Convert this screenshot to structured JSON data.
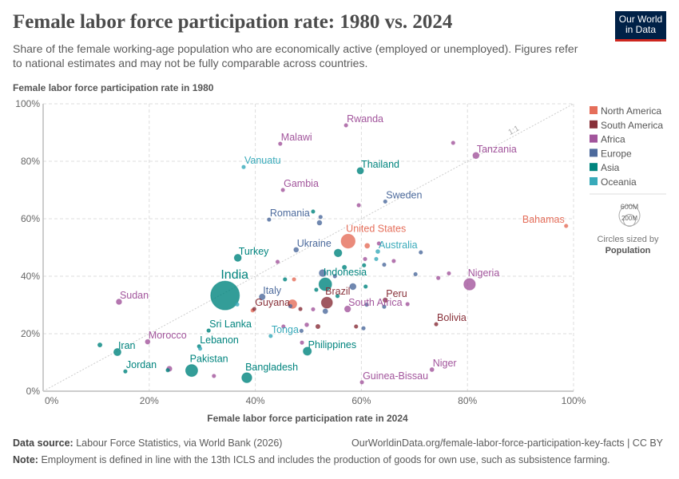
{
  "header": {
    "title": "Female labor force participation rate: 1980 vs. 2024",
    "subtitle": "Share of the female working-age population who are economically active (employed or unemployed). Figures refer to national estimates and may not be fully comparable across countries.",
    "logo": "Our World in Data"
  },
  "footer": {
    "source_label": "Data source:",
    "source": "Labour Force Statistics, via World Bank (2026)",
    "url": "OurWorldinData.org/female-labor-force-participation-key-facts | CC BY",
    "note_label": "Note:",
    "note": "Employment is defined in line with the 13th ICLS and includes the production of goods for own use, such as subsistence farming."
  },
  "chart_data": {
    "type": "scatter",
    "xlabel": "Female labor force participation rate in 2024",
    "ylabel": "Female labor force participation rate in 1980",
    "xlim": [
      0,
      100
    ],
    "ylim": [
      0,
      100
    ],
    "xticks": [
      "0%",
      "20%",
      "40%",
      "60%",
      "80%",
      "100%"
    ],
    "yticks": [
      "0%",
      "20%",
      "40%",
      "60%",
      "80%",
      "100%"
    ],
    "grid": true,
    "reference_line_label": "1:1",
    "legend_position": "right",
    "legend": [
      {
        "name": "North America",
        "color": "#E56E5A"
      },
      {
        "name": "South America",
        "color": "#883039"
      },
      {
        "name": "Africa",
        "color": "#A2559C"
      },
      {
        "name": "Europe",
        "color": "#4C6A9C"
      },
      {
        "name": "Asia",
        "color": "#00847E"
      },
      {
        "name": "Oceania",
        "color": "#38AABA"
      }
    ],
    "size_legend": {
      "title": "Circles sized by",
      "variable": "Population",
      "values": [
        "600M",
        "200M"
      ]
    },
    "points": [
      {
        "name": "India",
        "region": "Asia",
        "x": 34.3,
        "y": 33.3,
        "pop": 1440
      },
      {
        "name": "Rwanda",
        "region": "Africa",
        "x": 57.1,
        "y": 92.5,
        "pop": 14
      },
      {
        "name": "Malawi",
        "region": "Africa",
        "x": 44.7,
        "y": 86.1,
        "pop": 21
      },
      {
        "name": "Vanuatu",
        "region": "Oceania",
        "x": 37.8,
        "y": 78,
        "pop": 0.3
      },
      {
        "name": "Gambia",
        "region": "Africa",
        "x": 45.2,
        "y": 70,
        "pop": 2.7
      },
      {
        "name": "Thailand",
        "region": "Asia",
        "x": 59.8,
        "y": 76.7,
        "pop": 72
      },
      {
        "name": "Tanzania",
        "region": "Africa",
        "x": 81.6,
        "y": 82,
        "pop": 67
      },
      {
        "name": "Sweden",
        "region": "Europe",
        "x": 64.5,
        "y": 66,
        "pop": 10.5
      },
      {
        "name": "Bahamas",
        "region": "North America",
        "x": 98.6,
        "y": 57.5,
        "pop": 0.4
      },
      {
        "name": "Romania",
        "region": "Europe",
        "x": 42.6,
        "y": 59.7,
        "pop": 19
      },
      {
        "name": "Ukraine",
        "region": "Europe",
        "x": 47.7,
        "y": 49.2,
        "pop": 38
      },
      {
        "name": "United States",
        "region": "North America",
        "x": 57.5,
        "y": 52.2,
        "pop": 340
      },
      {
        "name": "Turkey",
        "region": "Asia",
        "x": 36.7,
        "y": 46.4,
        "pop": 86
      },
      {
        "name": "Australia",
        "region": "Oceania",
        "x": 63.1,
        "y": 48.6,
        "pop": 27
      },
      {
        "name": "Indonesia",
        "region": "Asia",
        "x": 53.2,
        "y": 37.2,
        "pop": 280
      },
      {
        "name": "Nigeria",
        "region": "Africa",
        "x": 80.4,
        "y": 37.2,
        "pop": 230
      },
      {
        "name": "Italy",
        "region": "Europe",
        "x": 41.3,
        "y": 32.8,
        "pop": 59
      },
      {
        "name": "Brazil",
        "region": "South America",
        "x": 53.5,
        "y": 30.8,
        "pop": 212
      },
      {
        "name": "Peru",
        "region": "South America",
        "x": 64.5,
        "y": 31.7,
        "pop": 34
      },
      {
        "name": "Guyana",
        "region": "South America",
        "x": 39.8,
        "y": 28.6,
        "pop": 0.8
      },
      {
        "name": "South Africa",
        "region": "Africa",
        "x": 57.4,
        "y": 28.6,
        "pop": 63
      },
      {
        "name": "Bolivia",
        "region": "South America",
        "x": 74.1,
        "y": 23.3,
        "pop": 12
      },
      {
        "name": "Sri Lanka",
        "region": "Asia",
        "x": 31.2,
        "y": 21.1,
        "pop": 22
      },
      {
        "name": "Tonga",
        "region": "Oceania",
        "x": 42.9,
        "y": 19.2,
        "pop": 0.1
      },
      {
        "name": "Philippines",
        "region": "Asia",
        "x": 49.8,
        "y": 13.9,
        "pop": 115
      },
      {
        "name": "Morocco",
        "region": "Africa",
        "x": 19.7,
        "y": 17.2,
        "pop": 37
      },
      {
        "name": "Sudan",
        "region": "Africa",
        "x": 14.3,
        "y": 31.1,
        "pop": 50
      },
      {
        "name": "Iran",
        "region": "Asia",
        "x": 14,
        "y": 13.6,
        "pop": 90
      },
      {
        "name": "Lebanon",
        "region": "Asia",
        "x": 29.4,
        "y": 15.6,
        "pop": 5.8
      },
      {
        "name": "Jordan",
        "region": "Asia",
        "x": 15.5,
        "y": 6.9,
        "pop": 11
      },
      {
        "name": "Pakistan",
        "region": "Asia",
        "x": 28,
        "y": 7.2,
        "pop": 250
      },
      {
        "name": "Bangladesh",
        "region": "Asia",
        "x": 38.4,
        "y": 4.7,
        "pop": 173
      },
      {
        "name": "Guinea-Bissau",
        "region": "Africa",
        "x": 60.1,
        "y": 3.1,
        "pop": 2.1
      },
      {
        "name": "Niger",
        "region": "Africa",
        "x": 73.3,
        "y": 7.5,
        "pop": 27
      },
      {
        "region": "Africa",
        "x": 77.3,
        "y": 86.4,
        "pop": 20
      },
      {
        "region": "Asia",
        "x": 10.7,
        "y": 16.1,
        "pop": 30
      },
      {
        "region": "Africa",
        "x": 23.8,
        "y": 7.8,
        "pop": 45
      },
      {
        "region": "Asia",
        "x": 23.5,
        "y": 7.3,
        "pop": 15
      },
      {
        "region": "Asia",
        "x": 50.9,
        "y": 62.5,
        "pop": 8
      },
      {
        "region": "Europe",
        "x": 52.1,
        "y": 58.6,
        "pop": 37
      },
      {
        "region": "Africa",
        "x": 59.5,
        "y": 64.7,
        "pop": 9
      },
      {
        "region": "North America",
        "x": 61.1,
        "y": 50.6,
        "pop": 40
      },
      {
        "region": "Africa",
        "x": 63.3,
        "y": 51.4,
        "pop": 8
      },
      {
        "region": "Asia",
        "x": 55.6,
        "y": 48.1,
        "pop": 100
      },
      {
        "region": "Europe",
        "x": 71.2,
        "y": 48.3,
        "pop": 6
      },
      {
        "region": "Europe",
        "x": 70.2,
        "y": 40.7,
        "pop": 5
      },
      {
        "region": "Africa",
        "x": 74.5,
        "y": 39.4,
        "pop": 5
      },
      {
        "region": "Africa",
        "x": 76.5,
        "y": 41,
        "pop": 5
      },
      {
        "region": "Europe",
        "x": 52.7,
        "y": 41.1,
        "pop": 84
      },
      {
        "region": "Asia",
        "x": 56.8,
        "y": 43.1,
        "pop": 30
      },
      {
        "region": "Asia",
        "x": 45.6,
        "y": 38.9,
        "pop": 20
      },
      {
        "region": "North America",
        "x": 47.3,
        "y": 38.9,
        "pop": 5
      },
      {
        "region": "Europe",
        "x": 58.4,
        "y": 36.4,
        "pop": 66
      },
      {
        "region": "Asia",
        "x": 60.8,
        "y": 36.4,
        "pop": 8
      },
      {
        "region": "Europe",
        "x": 53.2,
        "y": 27.8,
        "pop": 40
      },
      {
        "region": "North America",
        "x": 47,
        "y": 30.3,
        "pop": 130
      },
      {
        "region": "South America",
        "x": 51.8,
        "y": 22.5,
        "pop": 30
      },
      {
        "region": "Africa",
        "x": 49.7,
        "y": 23.1,
        "pop": 25
      },
      {
        "region": "South America",
        "x": 59,
        "y": 22.5,
        "pop": 6
      },
      {
        "region": "Europe",
        "x": 60.4,
        "y": 21.9,
        "pop": 6
      },
      {
        "region": "Europe",
        "x": 64.3,
        "y": 29.4,
        "pop": 17
      },
      {
        "region": "Africa",
        "x": 68.7,
        "y": 30.3,
        "pop": 6
      },
      {
        "region": "Africa",
        "x": 48.8,
        "y": 16.9,
        "pop": 4
      },
      {
        "region": "Africa",
        "x": 32.2,
        "y": 5.3,
        "pop": 5
      },
      {
        "region": "Oceania",
        "x": 29.6,
        "y": 14.8,
        "pop": 1
      },
      {
        "region": "Oceania",
        "x": 36.6,
        "y": 30.2,
        "pop": 1
      },
      {
        "region": "North America",
        "x": 39.5,
        "y": 28.1,
        "pop": 4
      },
      {
        "region": "South America",
        "x": 48.5,
        "y": 28.6,
        "pop": 10
      },
      {
        "region": "Europe",
        "x": 48.7,
        "y": 21,
        "pop": 3
      },
      {
        "region": "Africa",
        "x": 50.9,
        "y": 28.5,
        "pop": 6
      },
      {
        "region": "Asia",
        "x": 51.5,
        "y": 35.3,
        "pop": 10
      },
      {
        "region": "Europe",
        "x": 55,
        "y": 40,
        "pop": 10
      },
      {
        "region": "Africa",
        "x": 60.7,
        "y": 46,
        "pop": 6
      },
      {
        "region": "Asia",
        "x": 60.5,
        "y": 43.8,
        "pop": 4
      },
      {
        "region": "Oceania",
        "x": 62.8,
        "y": 46,
        "pop": 5
      },
      {
        "region": "Europe",
        "x": 64.3,
        "y": 44,
        "pop": 2
      },
      {
        "region": "Africa",
        "x": 66.1,
        "y": 45.3,
        "pop": 4
      },
      {
        "region": "Europe",
        "x": 61,
        "y": 30.1,
        "pop": 4
      },
      {
        "region": "Africa",
        "x": 45.3,
        "y": 22.5,
        "pop": 3
      },
      {
        "region": "Europe",
        "x": 46.6,
        "y": 29.6,
        "pop": 3
      },
      {
        "region": "Asia",
        "x": 55.5,
        "y": 33.1,
        "pop": 3
      },
      {
        "region": "Africa",
        "x": 44.2,
        "y": 45,
        "pop": 3
      },
      {
        "region": "Europe",
        "x": 52.3,
        "y": 60.6,
        "pop": 3
      }
    ]
  }
}
